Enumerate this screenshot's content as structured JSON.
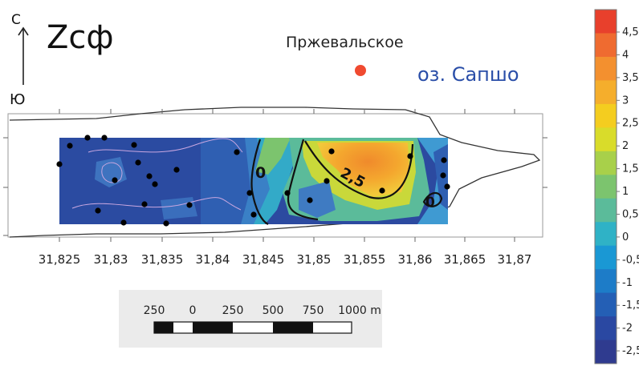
{
  "title": "Zсф",
  "compass": {
    "north": "С",
    "south": "Ю"
  },
  "village": {
    "label": "Пржевальское",
    "color": "#f04a30"
  },
  "lake": {
    "label": "оз. Сапшо",
    "color": "#2a4ea8"
  },
  "x_axis": {
    "ticks": [
      "31,825",
      "31,83",
      "31,835",
      "31,84",
      "31,845",
      "31,85",
      "31,855",
      "31,86",
      "31,865",
      "31,87"
    ]
  },
  "contour_labels": [
    "0",
    "2,5",
    "0"
  ],
  "colorbar": {
    "labels": [
      "4,5",
      "4",
      "3,5",
      "3",
      "2,5",
      "2",
      "1,5",
      "1",
      "0,5",
      "0",
      "-0,5",
      "-1",
      "-1,5",
      "-2",
      "-2,5"
    ],
    "colors": [
      "#e8402c",
      "#ef6b30",
      "#f3902f",
      "#f5ae2c",
      "#f4cd1f",
      "#d9dc2a",
      "#a8d04a",
      "#7cc46e",
      "#5bbb9a",
      "#2fb2c6",
      "#1a98d4",
      "#1d7cc8",
      "#245fb5",
      "#2a48a2",
      "#2f3b8f"
    ]
  },
  "scalebar": {
    "labels": [
      "250",
      "0",
      "250",
      "500",
      "750",
      "1000 m"
    ]
  },
  "sample_points": 27
}
